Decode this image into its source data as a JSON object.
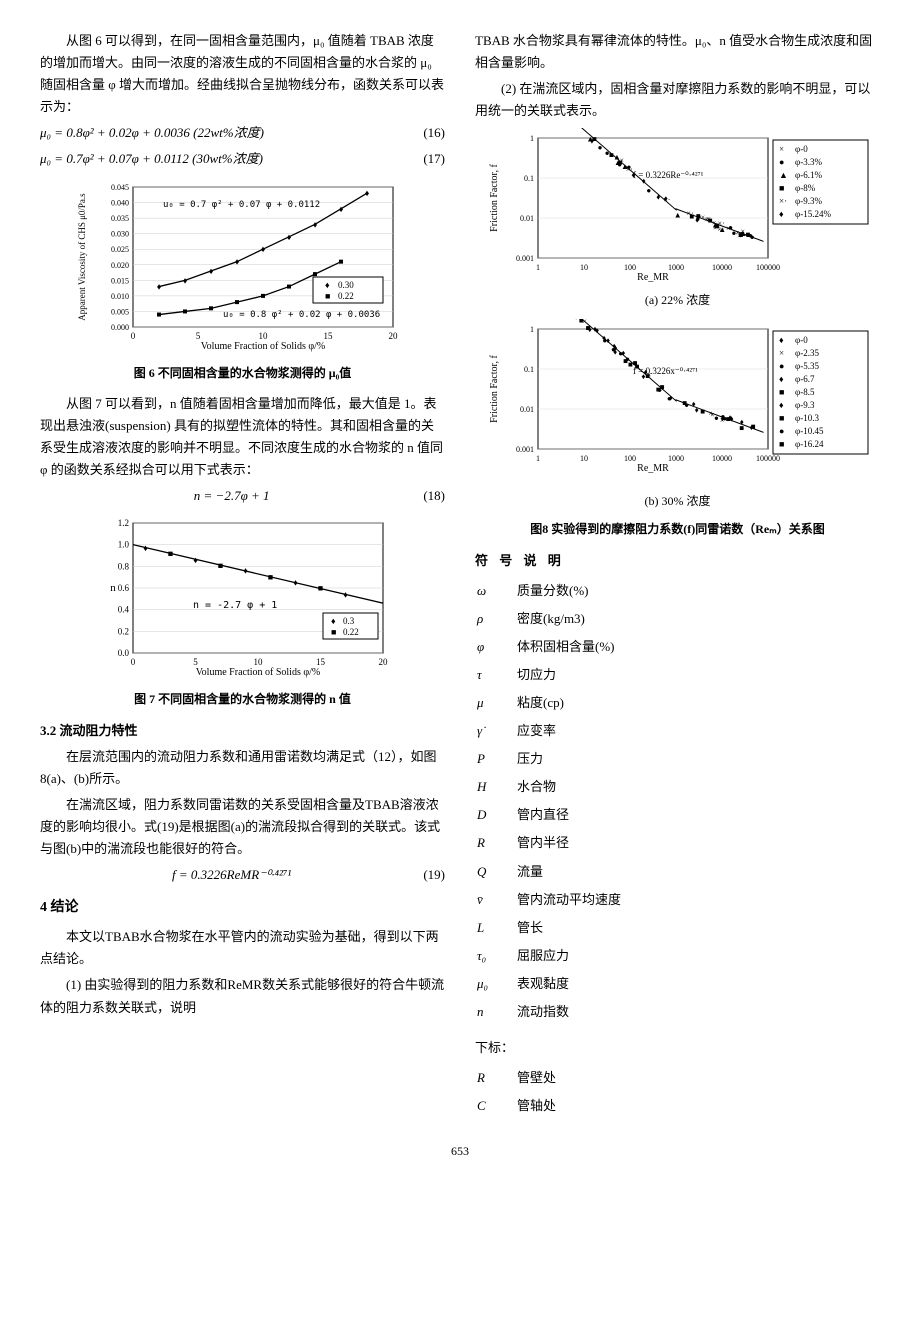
{
  "left": {
    "para1": "从图 6 可以得到，在同一固相含量范围内，μ₀ 值随着 TBAB 浓度的增加而增大。由同一浓度的溶液生成的不同固相含量的水合浆的 μ₀ 随固相含量 φ 增大而增加。经曲线拟合呈抛物线分布，函数关系可以表示为：",
    "eq16": "μ₀ = 0.8φ² + 0.02φ + 0.0036  (22wt%浓度)",
    "eq16_num": "(16)",
    "eq17": "μ₀ = 0.7φ² + 0.07φ + 0.0112  (30wt%浓度)",
    "eq17_num": "(17)",
    "fig6": {
      "caption": "图 6  不同固相含量的水合物浆测得的 μ₀值",
      "xlabel": "Volume Fraction of Solids  φ/%",
      "ylabel": "Apparent Viscosity of CHS\nμ0/Pa.s",
      "xlim": [
        0,
        20
      ],
      "ylim": [
        0,
        0.045
      ],
      "yticks": [
        0.0,
        0.005,
        0.01,
        0.015,
        0.02,
        0.025,
        0.03,
        0.035,
        0.04,
        0.045
      ],
      "xticks": [
        0,
        5,
        10,
        15,
        20
      ],
      "curve1_label": "u₀ = 0.7 φ² + 0.07 φ + 0.0112",
      "curve2_label": "u₀ = 0.8 φ² + 0.02 φ + 0.0036",
      "legend": [
        "0.30",
        "0.22"
      ],
      "series1_x": [
        2,
        4,
        6,
        8,
        10,
        12,
        14,
        16,
        18
      ],
      "series1_y": [
        0.013,
        0.015,
        0.018,
        0.021,
        0.025,
        0.029,
        0.033,
        0.038,
        0.043
      ],
      "series2_x": [
        2,
        4,
        6,
        8,
        10,
        12,
        14,
        16
      ],
      "series2_y": [
        0.004,
        0.005,
        0.006,
        0.008,
        0.01,
        0.013,
        0.017,
        0.021
      ],
      "colors": {
        "line": "#000",
        "bg": "#fff"
      }
    },
    "para2": "从图 7 可以看到，n 值随着固相含量增加而降低，最大值是 1。表现出悬浊液(suspension) 具有的拟塑性流体的特性。其和固相含量的关系受生成溶液浓度的影响并不明显。不同浓度生成的水合物浆的 n 值同 φ 的函数关系经拟合可以用下式表示：",
    "eq18": "n = −2.7φ + 1",
    "eq18_num": "(18)",
    "fig7": {
      "caption": "图 7  不同固相含量的水合物浆测得的 n 值",
      "xlabel": "Volume Fraction of Solids  φ/%",
      "ylabel": "n",
      "xlim": [
        0,
        20
      ],
      "ylim": [
        0.0,
        1.2
      ],
      "xticks": [
        0,
        5,
        10,
        15,
        20
      ],
      "yticks": [
        0.0,
        0.2,
        0.4,
        0.6,
        0.8,
        1.0,
        1.2
      ],
      "line_label": "n = -2.7 φ + 1",
      "legend": [
        "0.3",
        "0.22"
      ],
      "pts_x": [
        1,
        3,
        5,
        7,
        9,
        11,
        13,
        15,
        17
      ],
      "pts_y": [
        0.97,
        0.92,
        0.86,
        0.81,
        0.76,
        0.7,
        0.65,
        0.6,
        0.54
      ],
      "colors": {
        "line": "#000",
        "bg": "#fff"
      }
    },
    "h32": "3.2  流动阻力特性",
    "para3": "在层流范围内的流动阻力系数和通用雷诺数均满足式（12），如图8(a)、(b)所示。",
    "para4": "在湍流区域，阻力系数同雷诺数的关系受固相含量及TBAB溶液浓度的影响均很小。式(19)是根据图(a)的湍流段拟合得到的关联式。该式与图(b)中的湍流段也能很好的符合。",
    "eq19": "f = 0.3226ReMR⁻⁰·⁴²⁷¹",
    "eq19_num": "(19)",
    "h4": "4  结论",
    "para5": "本文以TBAB水合物浆在水平管内的流动实验为基础，得到以下两点结论。",
    "para6": "(1) 由实验得到的阻力系数和ReMR数关系式能够很好的符合牛顿流体的阻力系数关联式，说明"
  },
  "right": {
    "para1": "TBAB 水合物浆具有幂律流体的特性。μ₀、n 值受水合物生成浓度和固相含量影响。",
    "para2": "(2) 在湍流区域内，固相含量对摩擦阻力系数的影响不明显，可以用统一的关联式表示。",
    "fig8a": {
      "sub": "(a) 22% 浓度",
      "xlabel": "Re_MR",
      "ylabel": "Friction Factor, f",
      "xlim": [
        1,
        100000
      ],
      "ylim": [
        0.001,
        1
      ],
      "fit_label": "f = 0.3226Re⁻⁰·⁴²⁷¹",
      "legend": [
        "φ-0",
        "φ-3.3%",
        "φ-6.1%",
        "φ-8%",
        "φ-9.3%",
        "φ-15.24%"
      ],
      "markers": [
        "×",
        "●",
        "▲",
        "■",
        "×·",
        "♦"
      ],
      "colors": {
        "line": "#000",
        "bg": "#fff"
      }
    },
    "fig8b": {
      "sub": "(b) 30% 浓度",
      "xlabel": "Re_MR",
      "ylabel": "Friction Factor, f",
      "xlim": [
        1,
        100000
      ],
      "ylim": [
        0.001,
        1
      ],
      "fit_label": "f = 0.3226x⁻⁰·⁴²⁷¹",
      "legend": [
        "φ-0",
        "φ-2.35",
        "φ-5.35",
        "φ-6.7",
        "φ-8.5",
        "φ-9.3",
        "φ-10.3",
        "φ-10.45",
        "φ-16.24"
      ],
      "markers": [
        "♦",
        "×",
        "●",
        "♦",
        "■",
        "♦",
        "■",
        "●",
        "■"
      ],
      "colors": {
        "line": "#000",
        "bg": "#fff"
      }
    },
    "fig8_caption": "图8  实验得到的摩擦阻力系数(f)同雷诺数（Reₘ）关系图",
    "sym_heading": "符  号  说  明",
    "symbols": [
      [
        "ω",
        "质量分数(%)"
      ],
      [
        "ρ",
        "密度(kg/m3)"
      ],
      [
        "φ",
        "体积固相含量(%)"
      ],
      [
        "τ",
        "切应力"
      ],
      [
        "μ",
        "粘度(cp)"
      ],
      [
        "γ̇",
        "应变率"
      ],
      [
        "P",
        "压力"
      ],
      [
        "H",
        "水合物"
      ],
      [
        "D",
        "管内直径"
      ],
      [
        "R",
        "管内半径"
      ],
      [
        "Q",
        "流量"
      ],
      [
        "v̄",
        "管内流动平均速度"
      ],
      [
        "L",
        "管长"
      ],
      [
        "τ₀",
        "屈服应力"
      ],
      [
        "μ₀",
        "表观黏度"
      ],
      [
        "n",
        "流动指数"
      ]
    ],
    "sub_heading": "下标：",
    "subs": [
      [
        "R",
        "管壁处"
      ],
      [
        "C",
        "管轴处"
      ]
    ]
  },
  "page": "653"
}
